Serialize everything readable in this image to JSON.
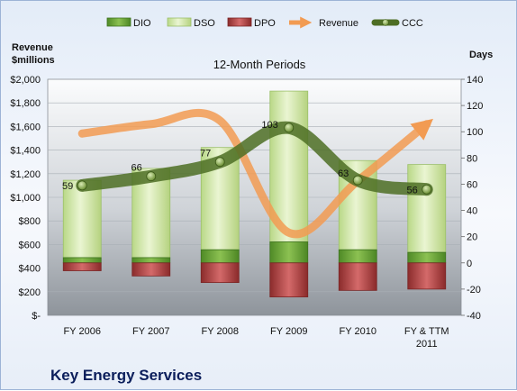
{
  "company_name": "Key Energy Services",
  "colors": {
    "dio": "#6aa536",
    "dso": "#cfe4a6",
    "dpo": "#b04545",
    "revenue": "#f29b52",
    "ccc": "#4e6e24"
  },
  "chart_data": {
    "type": "bar",
    "title": "12-Month Periods",
    "y_left_label": [
      "Revenue",
      "$millions"
    ],
    "y_right_label": "Days",
    "categories": [
      [
        "FY 2006"
      ],
      [
        "FY 2007"
      ],
      [
        "FY 2008"
      ],
      [
        "FY 2009"
      ],
      [
        "FY 2010"
      ],
      [
        "FY & TTM",
        "2011"
      ]
    ],
    "y_left_lim": [
      0,
      2000
    ],
    "y_left_ticks": [
      "$-",
      "$200",
      "$400",
      "$600",
      "$800",
      "$1,000",
      "$1,200",
      "$1,400",
      "$1,600",
      "$1,800",
      "$2,000"
    ],
    "y_right_lim": [
      -40,
      140
    ],
    "y_right_ticks": [
      "-40",
      "-20",
      "0",
      "20",
      "40",
      "60",
      "80",
      "100",
      "120",
      "140"
    ],
    "legend": [
      "DIO",
      "DSO",
      "DPO",
      "Revenue",
      "CCC"
    ],
    "legend_position": "top",
    "series": {
      "DIO": [
        4,
        4,
        10,
        16,
        10,
        8
      ],
      "DSO": [
        59,
        68,
        78,
        115,
        68,
        67
      ],
      "DPO": [
        -6,
        -10,
        -15,
        -26,
        -21,
        -20
      ],
      "Revenue": [
        1540,
        1620,
        1650,
        700,
        1140,
        1620
      ],
      "CCC": [
        59,
        66,
        77,
        103,
        63,
        56
      ]
    },
    "ccc_labels": [
      "59",
      "66",
      "77",
      "103",
      "63",
      "56"
    ]
  }
}
